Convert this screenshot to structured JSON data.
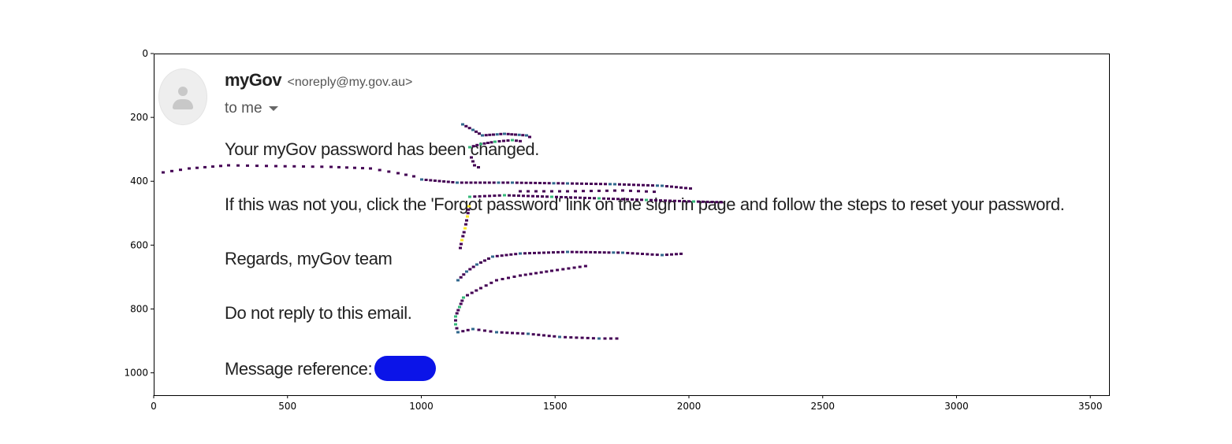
{
  "axes": {
    "x_ticks": [
      "0",
      "500",
      "1000",
      "1500",
      "2000",
      "2500",
      "3000",
      "3500"
    ],
    "y_ticks": [
      "0",
      "200",
      "400",
      "600",
      "800",
      "1000"
    ]
  },
  "email": {
    "sender_name": "myGov",
    "sender_email": "<noreply@my.gov.au>",
    "recipient": "to me",
    "lines": [
      "Your myGov password has been changed.",
      "If this was not you, click the 'Forgot password' link on the sign in page and follow the steps to reset your password.",
      "Regards, myGov team",
      "Do not reply to this email.",
      "Message reference:"
    ],
    "icons": {
      "avatar": "person-icon",
      "expand": "chevron-down-icon",
      "redaction": "redaction-mark"
    },
    "colors": {
      "redaction": "#0b14e8",
      "overlay_primary": "#440154",
      "overlay_secondary": "#31688e",
      "overlay_accent": "#35b779",
      "overlay_highlight": "#fde725"
    }
  }
}
